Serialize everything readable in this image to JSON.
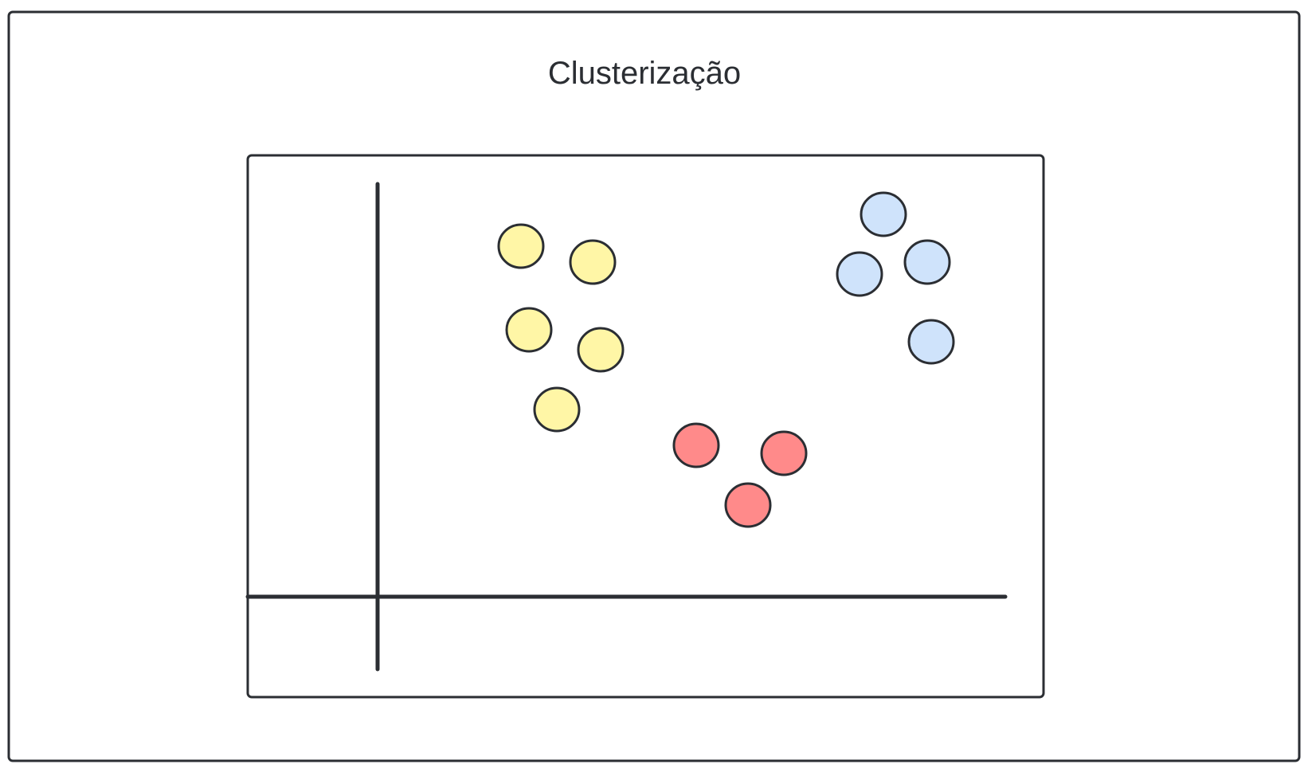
{
  "diagram": {
    "title": "Clusterização",
    "colors": {
      "stroke": "#2b2e33",
      "background": "#ffffff"
    },
    "clusters": [
      {
        "fill": "#fff6a6",
        "points": [
          [
            1.8,
            4.4
          ],
          [
            2.7,
            4.2
          ],
          [
            1.9,
            3.35
          ],
          [
            2.8,
            3.1
          ],
          [
            2.25,
            2.35
          ]
        ]
      },
      {
        "fill": "#ff8a8a",
        "points": [
          [
            4.0,
            1.9
          ],
          [
            5.1,
            1.8
          ],
          [
            4.65,
            1.15
          ]
        ]
      },
      {
        "fill": "#cfe3fb",
        "points": [
          [
            6.35,
            4.8
          ],
          [
            6.9,
            4.2
          ],
          [
            6.05,
            4.05
          ],
          [
            6.95,
            3.2
          ]
        ]
      }
    ]
  }
}
